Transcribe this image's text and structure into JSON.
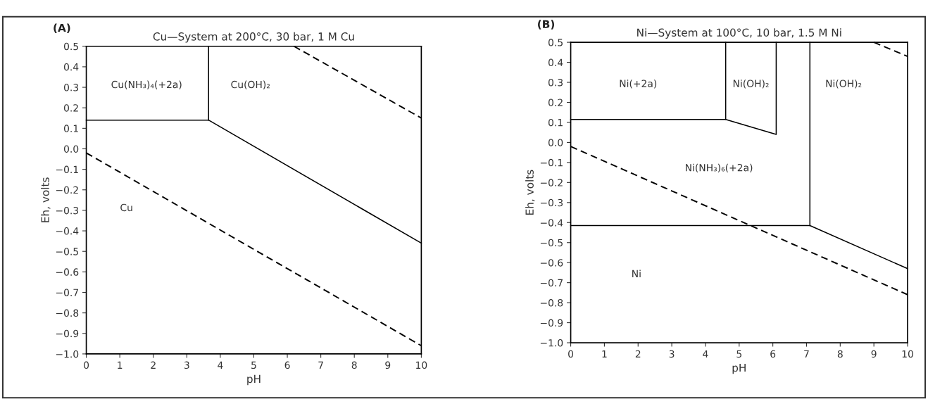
{
  "chart_data": [
    {
      "type": "line",
      "title": "Cu—System at 200°C, 30 bar, 1 M Cu",
      "xlabel": "pH",
      "ylabel": "Eh, volts",
      "xlim": [
        0,
        10
      ],
      "ylim": [
        -1.0,
        0.5
      ],
      "xticks": [
        0,
        1,
        2,
        3,
        4,
        5,
        6,
        7,
        8,
        9,
        10
      ],
      "yticks": [
        {
          "value": 0.5,
          "label": "0.5"
        },
        {
          "value": 0.4,
          "label": "0.4"
        },
        {
          "value": 0.3,
          "label": "0.3"
        },
        {
          "value": 0.2,
          "label": "0.2"
        },
        {
          "value": 0.1,
          "label": "0.1"
        },
        {
          "value": 0,
          "label": "0.0"
        },
        {
          "value": -0.1,
          "label": "−0.1"
        },
        {
          "value": -0.2,
          "label": "−0.2"
        },
        {
          "value": -0.3,
          "label": "−0.3"
        },
        {
          "value": -0.4,
          "label": "−0.4"
        },
        {
          "value": -0.5,
          "label": "−0.5"
        },
        {
          "value": -0.6,
          "label": "−0.6"
        },
        {
          "value": -0.7,
          "label": "−0.7"
        },
        {
          "value": -0.8,
          "label": "−0.8"
        },
        {
          "value": -0.9,
          "label": "−0.9"
        },
        {
          "value": -1.0,
          "label": "−1.0"
        }
      ],
      "grid": false,
      "legend": false,
      "marker": "none",
      "series": [
        {
          "color": "#000000",
          "line_style": "solid",
          "x": [
            0,
            3.65,
            10
          ],
          "values": [
            0.14,
            0.14,
            -0.46
          ]
        },
        {
          "color": "#000000",
          "line_style": "solid",
          "x": [
            3.65,
            3.65
          ],
          "values": [
            0.14,
            0.5
          ]
        },
        {
          "color": "#000000",
          "line_style": "dashed",
          "x": [
            0,
            10
          ],
          "values": [
            -0.02,
            -0.96
          ]
        },
        {
          "color": "#000000",
          "line_style": "dashed",
          "x": [
            6.2,
            10
          ],
          "values": [
            0.5,
            0.15
          ]
        }
      ],
      "annotations": [
        "(A)",
        "Cu(NH₃)₄(+2a)",
        "Cu(OH)₂",
        "Cu"
      ]
    },
    {
      "type": "line",
      "title": "Ni—System at 100°C, 10 bar, 1.5 M Ni",
      "xlabel": "pH",
      "ylabel": "Eh, volts",
      "xlim": [
        0,
        10
      ],
      "ylim": [
        -1.0,
        0.5
      ],
      "xticks": [
        0,
        1,
        2,
        3,
        4,
        5,
        6,
        7,
        8,
        9,
        10
      ],
      "yticks": [
        {
          "value": 0.5,
          "label": "0.5"
        },
        {
          "value": 0.4,
          "label": "0.4"
        },
        {
          "value": 0.3,
          "label": "0.3"
        },
        {
          "value": 0.2,
          "label": "0.2"
        },
        {
          "value": 0.1,
          "label": "0.1"
        },
        {
          "value": 0,
          "label": "0.0"
        },
        {
          "value": -0.1,
          "label": "−0.1"
        },
        {
          "value": -0.2,
          "label": "−0.2"
        },
        {
          "value": -0.3,
          "label": "−0.3"
        },
        {
          "value": -0.4,
          "label": "−0.4"
        },
        {
          "value": -0.5,
          "label": "−0.5"
        },
        {
          "value": -0.6,
          "label": "−0.6"
        },
        {
          "value": -0.7,
          "label": "−0.7"
        },
        {
          "value": -0.8,
          "label": "−0.8"
        },
        {
          "value": -0.9,
          "label": "−0.9"
        },
        {
          "value": -1.0,
          "label": "−1.0"
        }
      ],
      "grid": false,
      "legend": false,
      "marker": "none",
      "series": [
        {
          "color": "#000000",
          "line_style": "solid",
          "x": [
            0,
            4.6,
            6.1,
            6.1
          ],
          "values": [
            0.115,
            0.115,
            0.04,
            0.5
          ]
        },
        {
          "color": "#000000",
          "line_style": "solid",
          "x": [
            4.6,
            4.6
          ],
          "values": [
            0.115,
            0.5
          ]
        },
        {
          "color": "#000000",
          "line_style": "solid",
          "x": [
            0,
            7.1,
            10
          ],
          "values": [
            -0.415,
            -0.415,
            -0.63
          ]
        },
        {
          "color": "#000000",
          "line_style": "solid",
          "x": [
            7.1,
            7.1
          ],
          "values": [
            -0.415,
            0.5
          ]
        },
        {
          "color": "#000000",
          "line_style": "dashed",
          "x": [
            0,
            10
          ],
          "values": [
            -0.02,
            -0.76
          ]
        },
        {
          "color": "#000000",
          "line_style": "dashed",
          "x": [
            9.0,
            10
          ],
          "values": [
            0.5,
            0.43
          ]
        }
      ],
      "annotations": [
        "(B)",
        "Ni(+2a)",
        "Ni(OH)₂",
        "Ni(OH)₂",
        "Ni(NH₃)₆(+2a)",
        "Ni"
      ]
    }
  ]
}
